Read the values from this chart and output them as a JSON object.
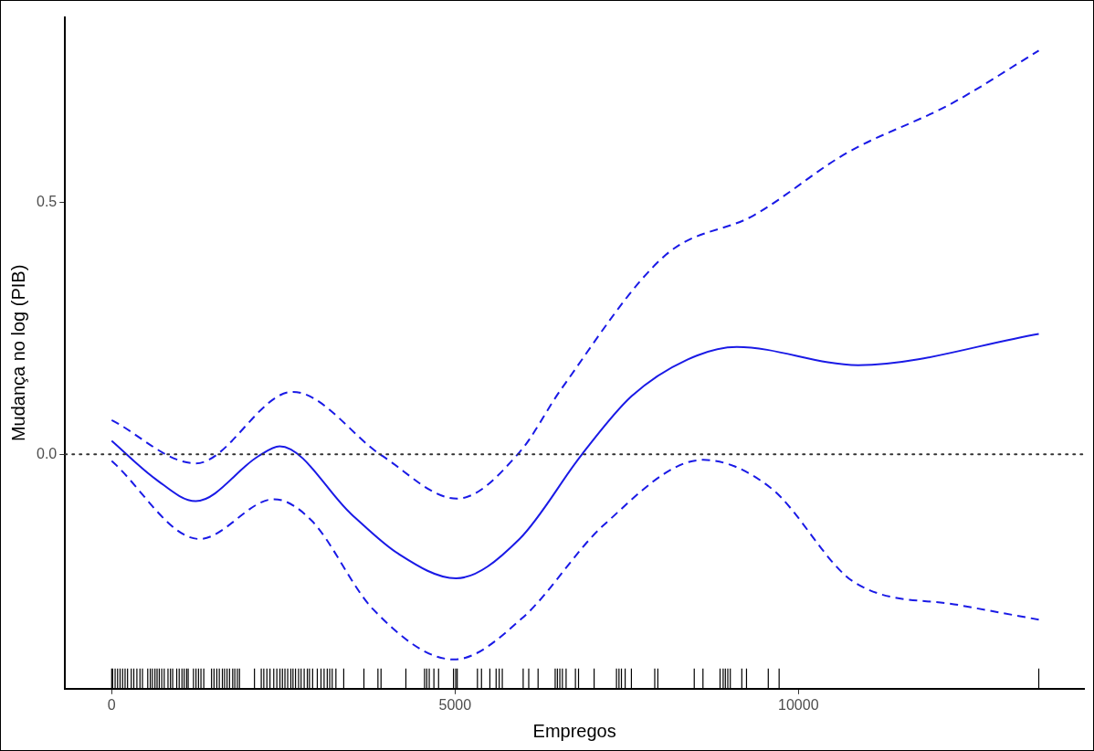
{
  "chart_data": {
    "type": "line",
    "xlabel": "Empregos",
    "ylabel": "Mudança no log (PIB)",
    "xlim": [
      -679,
      14158
    ],
    "ylim": [
      -0.465,
      0.867
    ],
    "xticks": [
      0,
      5000,
      10000
    ],
    "yticks": [
      {
        "value": 0,
        "label": "0.0"
      },
      {
        "value": 0.5,
        "label": "0.5"
      }
    ],
    "grid": false,
    "legend": false,
    "ref_lines": [
      {
        "axis": "y",
        "value": 0,
        "color": "#333333",
        "line_style": "dotted"
      }
    ],
    "series": [
      {
        "color": "#1a1ae6",
        "line_style": "solid",
        "x": [
          0,
          639,
          1223,
          2133,
          2446,
          3492,
          4171,
          5014,
          5938,
          6848,
          7568,
          8383,
          9103,
          10870,
          13500
        ],
        "values": [
          0.027,
          -0.049,
          -0.093,
          -0.004,
          0.016,
          -0.119,
          -0.197,
          -0.246,
          -0.168,
          0,
          0.115,
          0.188,
          0.213,
          0.177,
          0.239
        ]
      },
      {
        "color": "#1a1ae6",
        "line_style": "dashed",
        "x": [
          0,
          1223,
          2636,
          3940,
          5027,
          5938,
          6549,
          8071,
          9348,
          10693,
          12215,
          13500
        ],
        "values": [
          0.068,
          -0.018,
          0.124,
          -0.003,
          -0.088,
          0.004,
          0.13,
          0.396,
          0.474,
          0.597,
          0.695,
          0.801
        ]
      },
      {
        "color": "#1a1ae6",
        "line_style": "dashed",
        "x": [
          0,
          1277,
          2364,
          2908,
          3804,
          4986,
          5978,
          7160,
          8614,
          9592,
          10815,
          12337,
          13500
        ],
        "values": [
          -0.013,
          -0.168,
          -0.089,
          -0.131,
          -0.307,
          -0.407,
          -0.325,
          -0.141,
          -0.011,
          -0.066,
          -0.254,
          -0.299,
          -0.328
        ]
      },
      {
        "type": "bar",
        "color": "#000000",
        "base": [
          -0.465,
          -0.465,
          -0.465,
          -0.465,
          -0.465,
          -0.465,
          -0.465,
          -0.465,
          -0.465,
          -0.465,
          -0.465,
          -0.465,
          -0.465,
          -0.465,
          -0.465,
          -0.465,
          -0.465,
          -0.465,
          -0.465,
          -0.465,
          -0.465,
          -0.465,
          -0.465,
          -0.465,
          -0.465,
          -0.465,
          -0.465,
          -0.465,
          -0.465,
          -0.465,
          -0.465,
          -0.465,
          -0.465,
          -0.465,
          -0.465,
          -0.465,
          -0.465,
          -0.465,
          -0.465,
          -0.465,
          -0.465,
          -0.465,
          -0.465,
          -0.465,
          -0.465,
          -0.465,
          -0.465,
          -0.465,
          -0.465,
          -0.465,
          -0.465,
          -0.465,
          -0.465,
          -0.465,
          -0.465,
          -0.465,
          -0.465,
          -0.465,
          -0.465,
          -0.465,
          -0.465,
          -0.465,
          -0.465,
          -0.465,
          -0.465,
          -0.465,
          -0.465,
          -0.465,
          -0.465,
          -0.465,
          -0.465,
          -0.465,
          -0.465,
          -0.465,
          -0.465,
          -0.465,
          -0.465,
          -0.465,
          -0.465,
          -0.465,
          -0.465,
          -0.465,
          -0.465,
          -0.465,
          -0.465,
          -0.465,
          -0.465,
          -0.465,
          -0.465,
          -0.465,
          -0.465,
          -0.465,
          -0.465,
          -0.465,
          -0.465,
          -0.465,
          -0.465,
          -0.465,
          -0.465,
          -0.465,
          -0.465,
          -0.465,
          -0.465,
          -0.465,
          -0.465,
          -0.465,
          -0.465,
          -0.465,
          -0.465,
          -0.465,
          -0.465,
          -0.465,
          -0.465,
          -0.465,
          -0.465,
          -0.465,
          -0.465,
          -0.465,
          -0.465,
          -0.465,
          -0.465,
          -0.465,
          -0.465
        ],
        "x": [
          0,
          14,
          50,
          86,
          122,
          159,
          195,
          231,
          285,
          322,
          367,
          412,
          448,
          525,
          562,
          593,
          630,
          661,
          693,
          729,
          765,
          820,
          856,
          888,
          947,
          983,
          1024,
          1055,
          1091,
          1114,
          1191,
          1227,
          1264,
          1300,
          1341,
          1454,
          1490,
          1531,
          1567,
          1612,
          1644,
          1680,
          1716,
          1762,
          1793,
          1830,
          1861,
          2079,
          2178,
          2215,
          2260,
          2305,
          2360,
          2405,
          2450,
          2486,
          2523,
          2563,
          2609,
          2640,
          2677,
          2722,
          2758,
          2803,
          2849,
          2880,
          2926,
          2994,
          3048,
          3093,
          3139,
          3175,
          3211,
          3265,
          3379,
          3673,
          3877,
          3922,
          4284,
          4556,
          4588,
          4624,
          4692,
          4760,
          4977,
          5009,
          5032,
          5326,
          5385,
          5507,
          5598,
          5643,
          5688,
          5992,
          6073,
          6209,
          6458,
          6490,
          6526,
          6563,
          6617,
          6753,
          6798,
          7025,
          7351,
          7387,
          7423,
          7477,
          7568,
          7908,
          7953,
          8483,
          8610,
          8859,
          8904,
          8936,
          8972,
          9008,
          9176,
          9244,
          9561,
          9719,
          13500
        ],
        "values": [
          0.04,
          0.04,
          0.04,
          0.04,
          0.04,
          0.04,
          0.04,
          0.04,
          0.04,
          0.04,
          0.04,
          0.04,
          0.04,
          0.04,
          0.04,
          0.04,
          0.04,
          0.04,
          0.04,
          0.04,
          0.04,
          0.04,
          0.04,
          0.04,
          0.04,
          0.04,
          0.04,
          0.04,
          0.04,
          0.04,
          0.04,
          0.04,
          0.04,
          0.04,
          0.04,
          0.04,
          0.04,
          0.04,
          0.04,
          0.04,
          0.04,
          0.04,
          0.04,
          0.04,
          0.04,
          0.04,
          0.04,
          0.04,
          0.04,
          0.04,
          0.04,
          0.04,
          0.04,
          0.04,
          0.04,
          0.04,
          0.04,
          0.04,
          0.04,
          0.04,
          0.04,
          0.04,
          0.04,
          0.04,
          0.04,
          0.04,
          0.04,
          0.04,
          0.04,
          0.04,
          0.04,
          0.04,
          0.04,
          0.04,
          0.04,
          0.04,
          0.04,
          0.04,
          0.04,
          0.04,
          0.04,
          0.04,
          0.04,
          0.04,
          0.04,
          0.04,
          0.04,
          0.04,
          0.04,
          0.04,
          0.04,
          0.04,
          0.04,
          0.04,
          0.04,
          0.04,
          0.04,
          0.04,
          0.04,
          0.04,
          0.04,
          0.04,
          0.04,
          0.04,
          0.04,
          0.04,
          0.04,
          0.04,
          0.04,
          0.04,
          0.04,
          0.04,
          0.04,
          0.04,
          0.04,
          0.04,
          0.04,
          0.04,
          0.04,
          0.04,
          0.04,
          0.04,
          0.04
        ]
      }
    ]
  }
}
